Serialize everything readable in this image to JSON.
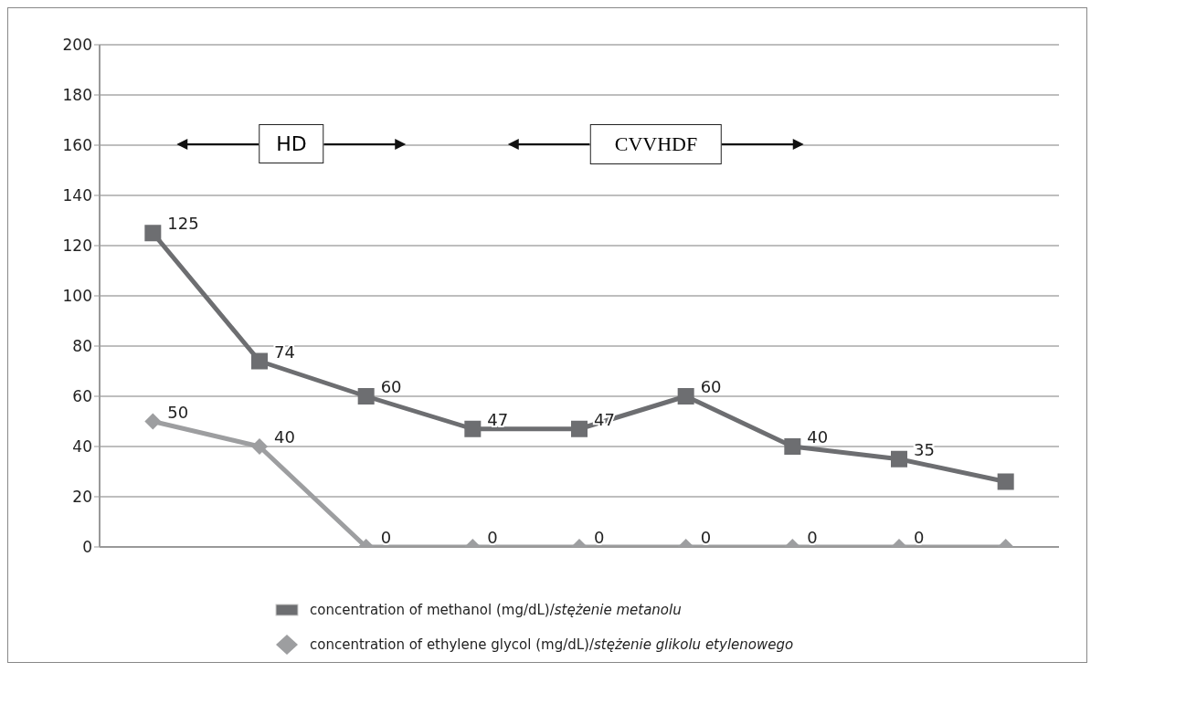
{
  "chart_data": {
    "type": "line",
    "categories": [
      null,
      null,
      null,
      null,
      null,
      null,
      null,
      null,
      null
    ],
    "series": [
      {
        "name": "concentration of methanol (mg/dL)/stężenie metanolu",
        "color": "#6d6e71",
        "marker": "square",
        "values": [
          125,
          74,
          60,
          47,
          47,
          60,
          40,
          35,
          26
        ],
        "value_labels": [
          "125",
          "74",
          "60",
          "47",
          "47",
          "60",
          "40",
          "35",
          null
        ]
      },
      {
        "name": "concentration of ethylene glycol (mg/dL)/stężenie glikolu etylenowego",
        "color": "#9d9ea0",
        "marker": "diamond",
        "values": [
          50,
          40,
          0,
          0,
          0,
          0,
          0,
          0,
          0
        ],
        "value_labels": [
          "50",
          "40",
          "0",
          "0",
          "0",
          "0",
          "0",
          "0",
          null
        ]
      }
    ],
    "ylim": [
      0,
      200
    ],
    "yticks": [
      0,
      20,
      40,
      60,
      80,
      100,
      120,
      140,
      160,
      180,
      200
    ],
    "grid": "y",
    "legend": "bottom",
    "annotations": [
      "HD",
      "CVVHDF"
    ]
  }
}
